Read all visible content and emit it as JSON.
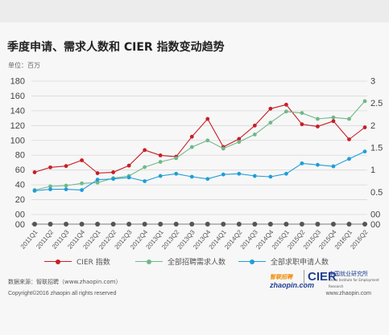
{
  "title": "季度申请、需求人数和 CIER 指数变动趋势",
  "unit_label": "单位：百万",
  "source": "数据来源：智联招聘（www.zhaopin.com）",
  "copyright": "Copyright©2016 zhaopin all rights reserved",
  "url": "www.zhaopin.com",
  "logos": {
    "zhaopin_brand": "zhaopin.com",
    "zhaopin_cn": "智联招聘",
    "cier": "CIER",
    "cier_cn": "中国就业研究所",
    "cier_en": "China Institute for Employment Research"
  },
  "colors": {
    "cier": "#c81e26",
    "demand": "#6fb88a",
    "apply": "#1f9dd9",
    "baseline": "#555555"
  },
  "chart_data": {
    "type": "line",
    "categories": [
      "2011Q1",
      "2011Q2",
      "2011Q3",
      "2011Q4",
      "2012Q1",
      "2012Q2",
      "2012Q3",
      "2012Q4",
      "2013Q1",
      "2013Q2",
      "2013Q3",
      "2013Q4",
      "2014Q1",
      "2014Q2",
      "2014Q3",
      "2014Q4",
      "2015Q1",
      "2015Q2",
      "2015Q3",
      "2015Q4",
      "2016Q1",
      "2016Q2"
    ],
    "y_ticks": [
      "00",
      "20",
      "40",
      "60",
      "80",
      "100",
      "120",
      "140",
      "160",
      "180"
    ],
    "y2_ticks": [
      "00",
      "0.5",
      "1",
      "1.5",
      "2",
      "2.5",
      "3"
    ],
    "ylim": [
      0,
      180
    ],
    "y2lim": [
      0,
      3
    ],
    "series": [
      {
        "name": "CIER 指数",
        "axis": "right",
        "color": "#c81e26",
        "values": [
          0.95,
          1.06,
          1.09,
          1.22,
          0.93,
          0.95,
          1.1,
          1.45,
          1.33,
          1.3,
          1.75,
          2.15,
          1.52,
          1.7,
          2.0,
          2.38,
          2.47,
          2.03,
          1.98,
          2.1,
          1.69,
          1.96
        ]
      },
      {
        "name": "全部招聘需求人数",
        "axis": "left",
        "color": "#6fb88a",
        "values": [
          33,
          38,
          39,
          42,
          43,
          49,
          52,
          64,
          71,
          76,
          91,
          100,
          89,
          98,
          108,
          124,
          139,
          137,
          129,
          131,
          129,
          153
        ]
      },
      {
        "name": "全部求职申请人数",
        "axis": "left",
        "color": "#1f9dd9",
        "values": [
          32,
          34,
          34,
          33,
          47,
          48,
          50,
          45,
          52,
          55,
          51,
          48,
          54,
          55,
          52,
          51,
          55,
          69,
          67,
          65,
          75,
          85
        ]
      }
    ],
    "grid": true,
    "legend_position": "bottom"
  }
}
